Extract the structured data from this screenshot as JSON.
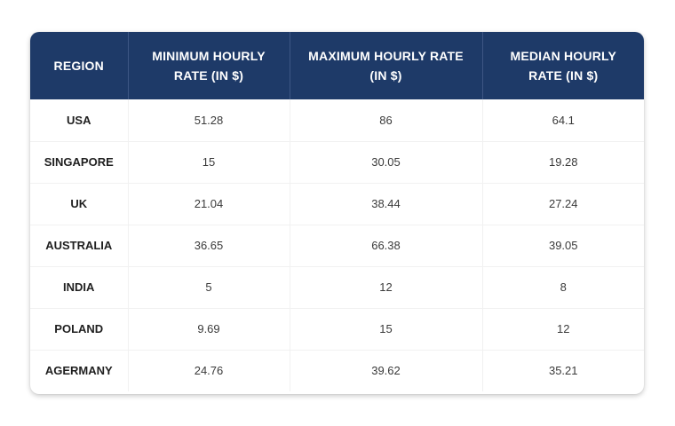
{
  "table": {
    "headers": [
      "REGION",
      "MINIMUM HOURLY RATE (IN $)",
      "MAXIMUM HOURLY RATE (IN $)",
      "MEDIAN HOURLY RATE (IN $)"
    ],
    "rows": [
      [
        "USA",
        "51.28",
        "86",
        "64.1"
      ],
      [
        "SINGAPORE",
        "15",
        "30.05",
        "19.28"
      ],
      [
        "UK",
        "21.04",
        "38.44",
        "27.24"
      ],
      [
        "AUSTRALIA",
        "36.65",
        "66.38",
        "39.05"
      ],
      [
        "INDIA",
        "5",
        "12",
        "8"
      ],
      [
        "POLAND",
        "9.69",
        "15",
        "12"
      ],
      [
        "AGERMANY",
        "24.76",
        "39.62",
        "35.21"
      ]
    ]
  },
  "colors": {
    "header_background": "#1e3a68",
    "header_text": "#ffffff",
    "body_text": "#3a3a3a"
  }
}
